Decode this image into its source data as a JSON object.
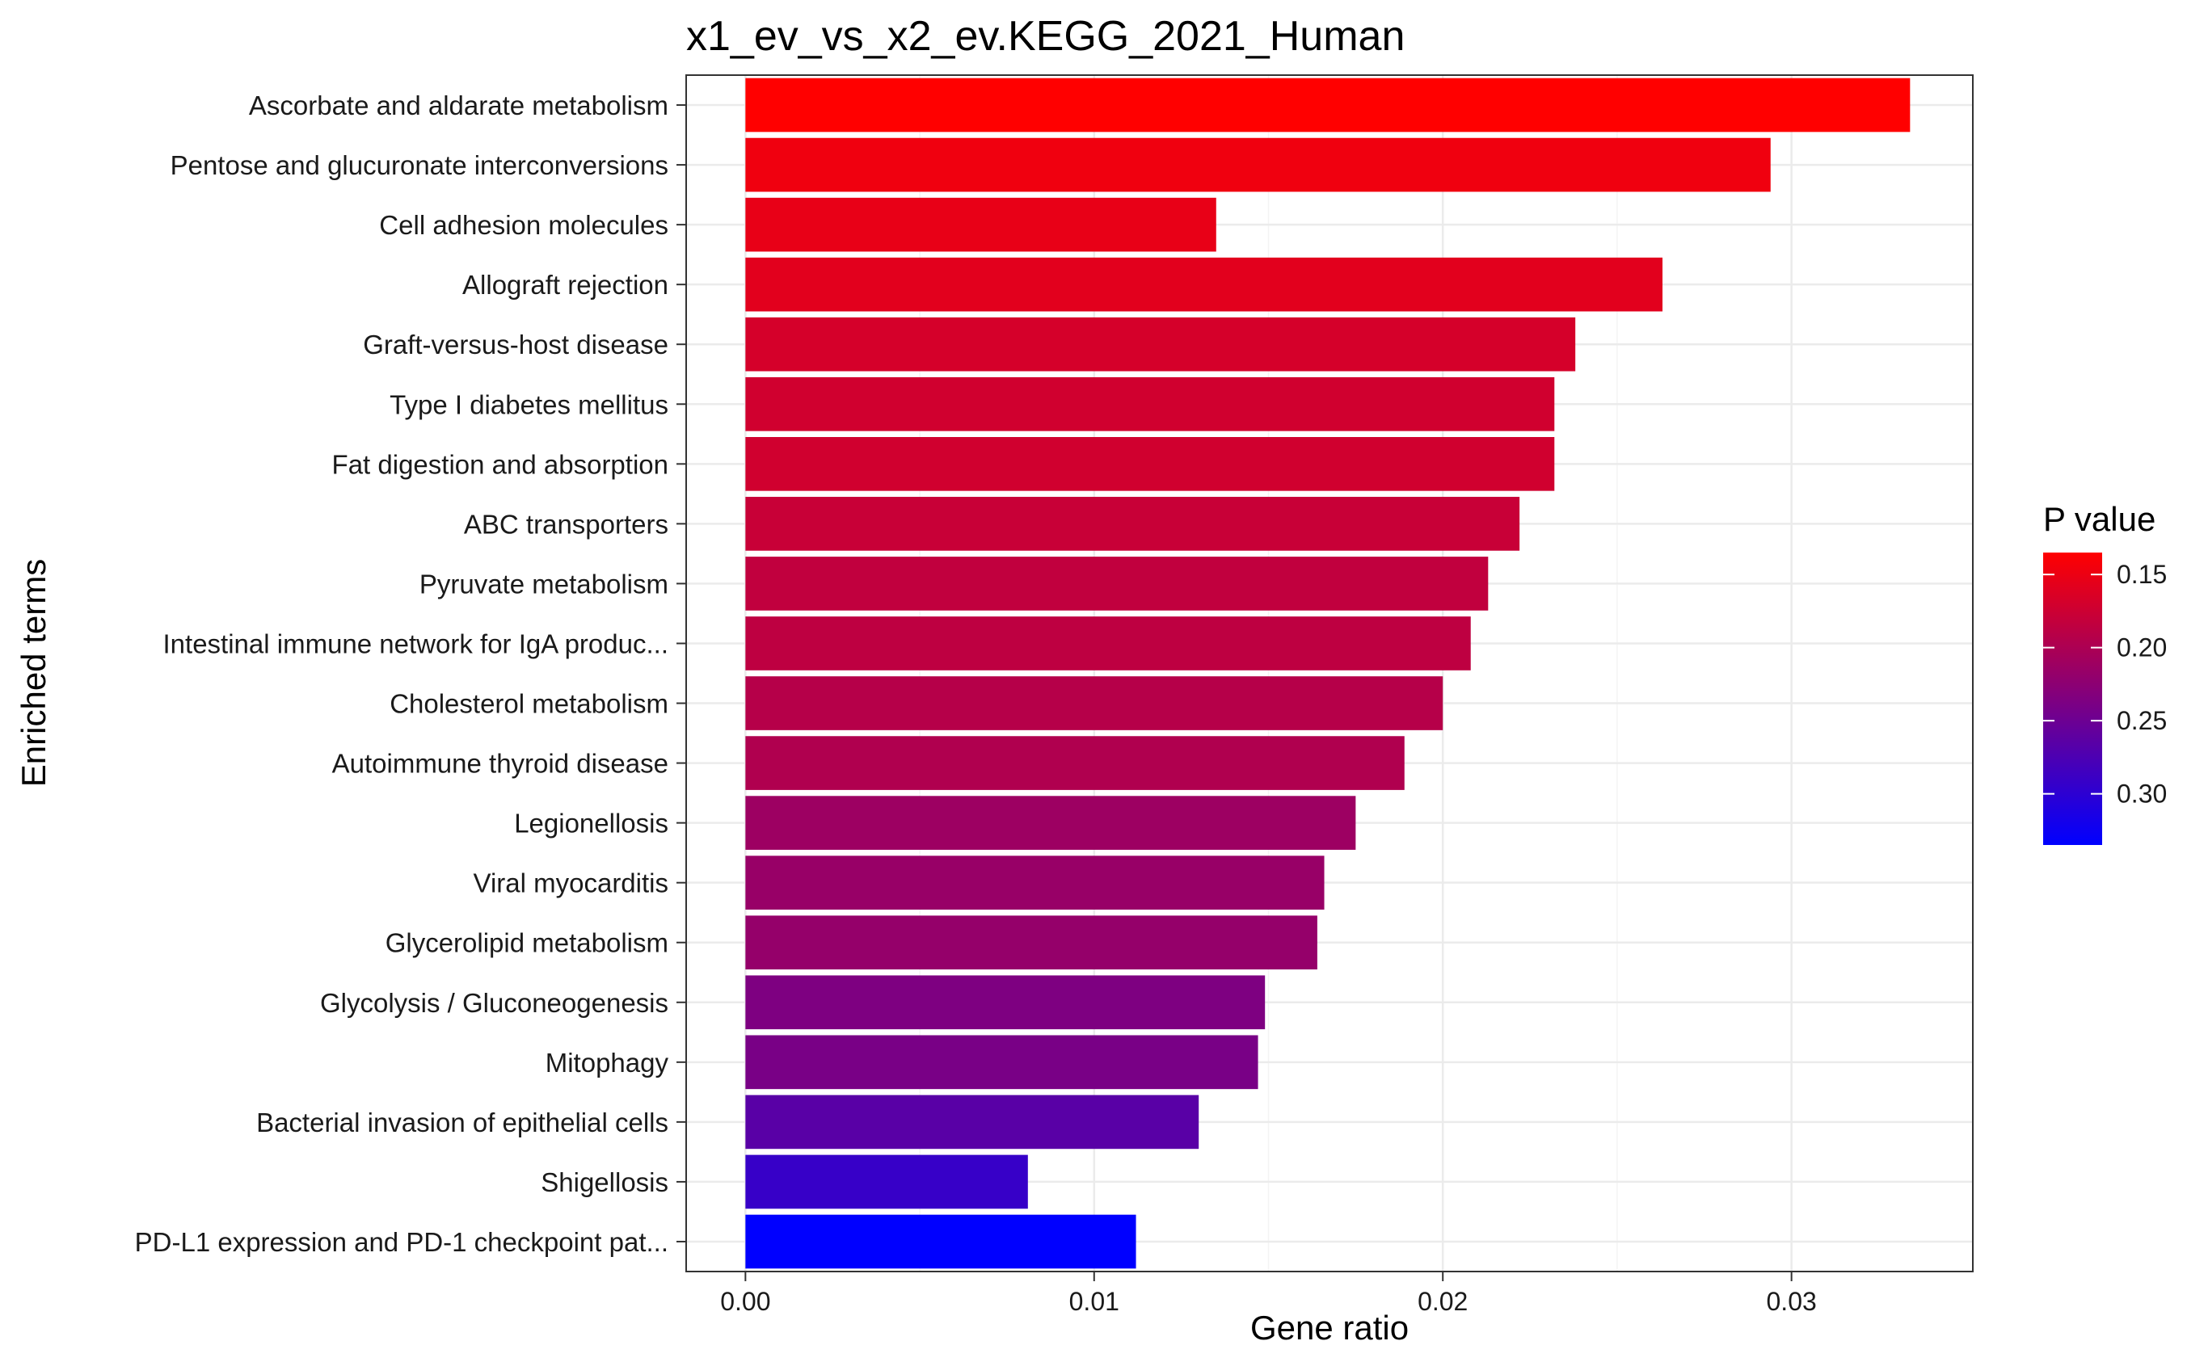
{
  "chart_data": {
    "type": "bar",
    "orientation": "horizontal",
    "title": "x1_ev_vs_x2_ev.KEGG_2021_Human",
    "xlabel": "Gene ratio",
    "ylabel": "Enriched terms",
    "xlim": [
      -0.0017,
      0.0352
    ],
    "x_ticks": [
      0.0,
      0.01,
      0.02,
      0.03
    ],
    "x_tick_labels": [
      "0.00",
      "0.01",
      "0.02",
      "0.03"
    ],
    "grid": true,
    "legend": {
      "title": "P value",
      "placement": "right",
      "range": [
        0.135,
        0.335
      ],
      "ticks": [
        0.15,
        0.2,
        0.25,
        0.3
      ],
      "tick_labels": [
        "0.15",
        "0.20",
        "0.25",
        "0.30"
      ],
      "low_color": "#FF0000",
      "high_color": "#0000FF"
    },
    "categories": [
      "Ascorbate and aldarate metabolism",
      "Pentose and glucuronate interconversions",
      "Cell adhesion molecules",
      "Allograft rejection",
      "Graft-versus-host disease",
      "Type I diabetes mellitus",
      "Fat digestion and absorption",
      "ABC transporters",
      "Pyruvate metabolism",
      "Intestinal immune network for IgA produc...",
      "Cholesterol metabolism",
      "Autoimmune thyroid disease",
      "Legionellosis",
      "Viral myocarditis",
      "Glycerolipid metabolism",
      "Glycolysis / Gluconeogenesis",
      "Mitophagy",
      "Bacterial invasion of epithelial cells",
      "Shigellosis",
      "PD-L1 expression and PD-1 checkpoint pat..."
    ],
    "values": [
      0.0334,
      0.0294,
      0.0135,
      0.0263,
      0.0238,
      0.0232,
      0.0232,
      0.0222,
      0.0213,
      0.0208,
      0.02,
      0.0189,
      0.0175,
      0.0166,
      0.0164,
      0.0149,
      0.0147,
      0.013,
      0.0081,
      0.0112
    ],
    "p_values": [
      0.135,
      0.147,
      0.153,
      0.158,
      0.168,
      0.172,
      0.172,
      0.178,
      0.184,
      0.186,
      0.192,
      0.197,
      0.212,
      0.216,
      0.218,
      0.236,
      0.24,
      0.265,
      0.292,
      0.335
    ]
  }
}
